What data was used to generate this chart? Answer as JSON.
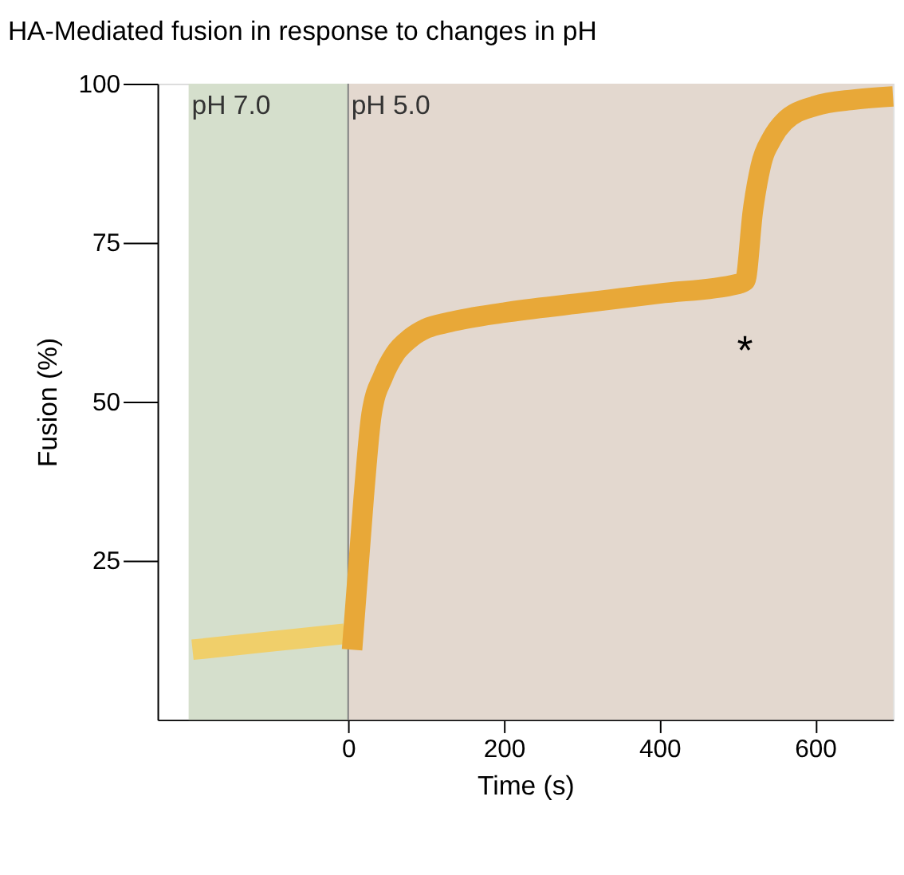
{
  "chart_data": {
    "type": "line",
    "title": "HA-Mediated fusion in response to changes in pH",
    "xlabel": "Time (s)",
    "ylabel": "Fusion (%)",
    "xlim": [
      -245,
      700
    ],
    "xticks": [
      0,
      200,
      400,
      600
    ],
    "ylim": [
      0,
      100
    ],
    "yticks": [
      25,
      50,
      75,
      100
    ],
    "grid": false,
    "marker": "none",
    "line_style": "solid",
    "series": [
      {
        "color": "#f0cf6a",
        "x": [
          -200,
          -100,
          -5
        ],
        "values": [
          11,
          12.3,
          13.5
        ]
      },
      {
        "color": "#e8a838",
        "x": [
          5,
          20,
          30,
          45,
          60,
          80,
          100,
          130,
          200,
          300,
          400,
          500,
          510,
          520,
          530,
          545,
          560,
          600,
          650,
          700
        ],
        "values": [
          11,
          35,
          48,
          54,
          57.5,
          60,
          61.5,
          62.5,
          64,
          65.5,
          67,
          68.5,
          69,
          80,
          87,
          91.5,
          94,
          96.5,
          97.5,
          98
        ]
      }
    ],
    "bands": [
      {
        "axis": "x",
        "from": -205,
        "to": 0,
        "label": "pH 7.0",
        "color": "#d5dfcc"
      },
      {
        "axis": "x",
        "from": 0,
        "to": 700,
        "label": "pH 5.0",
        "color": "#e3d8cf"
      }
    ],
    "ref_lines": [
      {
        "axis": "x",
        "value": 0,
        "color": "#808080"
      }
    ],
    "annotations": [
      "*"
    ]
  }
}
